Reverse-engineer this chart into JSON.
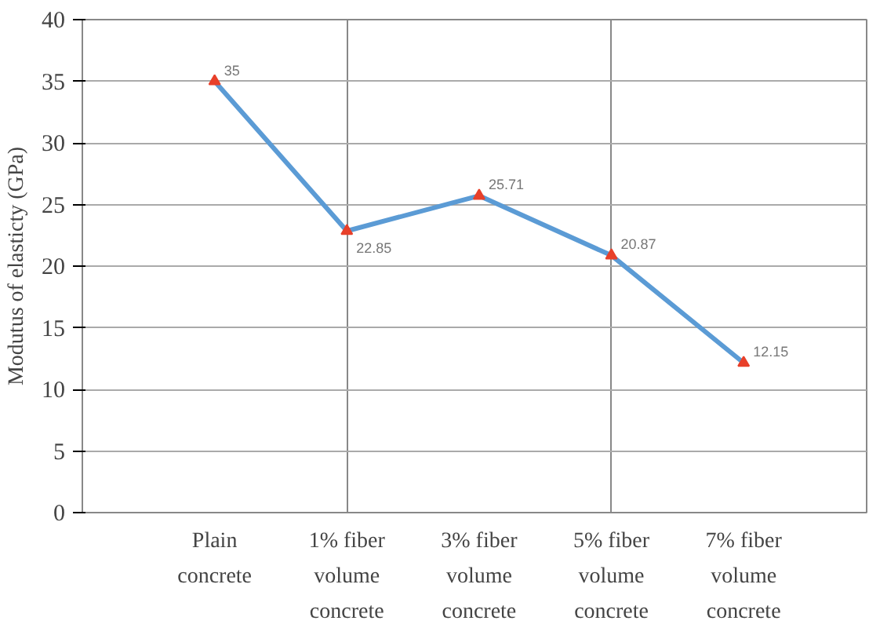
{
  "chart_data": {
    "type": "line",
    "ylabel": "Modutus of elasticty (GPa)",
    "categories": [
      "Plain concrete",
      "1% fiber volume concrete",
      "3% fiber volume concrete",
      "5% fiber volume concrete",
      "7% fiber volume concrete"
    ],
    "series": [
      {
        "color": "#5b9bd5",
        "values": [
          35,
          22.85,
          25.71,
          20.87,
          12.15
        ]
      }
    ],
    "ylim": [
      0,
      40
    ],
    "yticks": [
      0,
      5,
      10,
      15,
      20,
      25,
      30,
      35,
      40
    ],
    "grid": true,
    "marker": "triangle",
    "line_style": "solid",
    "data_labels": true
  }
}
